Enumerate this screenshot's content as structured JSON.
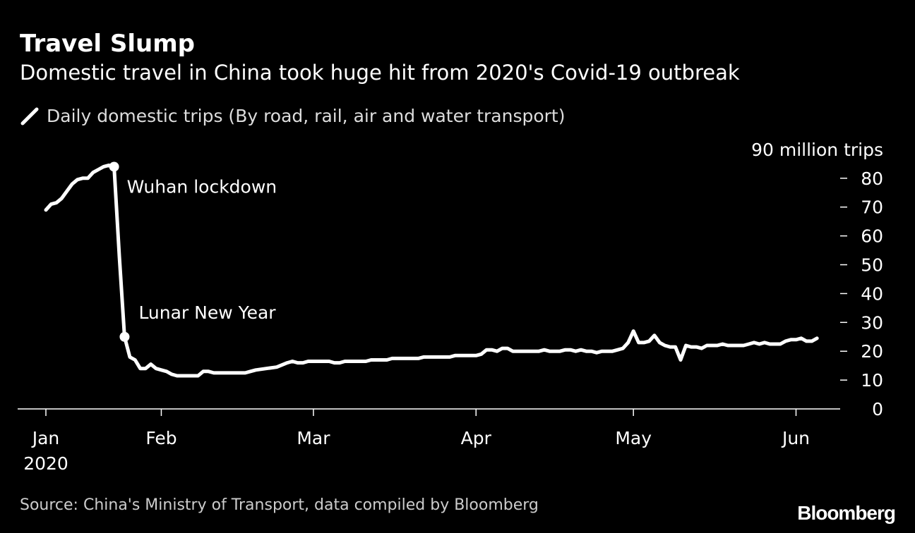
{
  "title": "Travel Slump",
  "subtitle": "Domestic travel in China took huge hit from 2020's Covid-19 outbreak",
  "legend_label": "Daily domestic trips (By road, rail, air and water transport)",
  "source": "Source: China's Ministry of Transport, data compiled by Bloomberg",
  "logo": "Bloomberg",
  "chart_data": {
    "type": "line",
    "title": "Travel Slump",
    "subtitle": "Domestic travel in China took huge hit from 2020's Covid-19 outbreak",
    "ylabel": "90 million trips",
    "ylim": [
      0,
      90
    ],
    "yticks": [
      0,
      10,
      20,
      30,
      40,
      50,
      60,
      70,
      80
    ],
    "ytick_labels": [
      "0",
      "10",
      "20",
      "30",
      "40",
      "50",
      "60",
      "70",
      "80"
    ],
    "y_axis_position": "right",
    "xlim": [
      "2020-01-10",
      "2020-06-05"
    ],
    "xticks": [
      {
        "date": "2020-01-10",
        "label": "Jan",
        "sublabel": "2020"
      },
      {
        "date": "2020-02-01",
        "label": "Feb"
      },
      {
        "date": "2020-03-01",
        "label": "Mar"
      },
      {
        "date": "2020-04-01",
        "label": "Apr"
      },
      {
        "date": "2020-05-01",
        "label": "May"
      },
      {
        "date": "2020-06-01",
        "label": "Jun"
      }
    ],
    "grid": false,
    "line_color": "#ffffff",
    "series": [
      {
        "name": "Daily domestic trips (By road, rail, air and water transport)",
        "points": [
          [
            "2020-01-10",
            69
          ],
          [
            "2020-01-11",
            71
          ],
          [
            "2020-01-12",
            71.5
          ],
          [
            "2020-01-13",
            73
          ],
          [
            "2020-01-14",
            75.5
          ],
          [
            "2020-01-15",
            78
          ],
          [
            "2020-01-16",
            79.5
          ],
          [
            "2020-01-17",
            80
          ],
          [
            "2020-01-18",
            80
          ],
          [
            "2020-01-19",
            82
          ],
          [
            "2020-01-20",
            83
          ],
          [
            "2020-01-21",
            84
          ],
          [
            "2020-01-22",
            84.5
          ],
          [
            "2020-01-23",
            84
          ],
          [
            "2020-01-24",
            53
          ],
          [
            "2020-01-25",
            25
          ],
          [
            "2020-01-26",
            18
          ],
          [
            "2020-01-27",
            17
          ],
          [
            "2020-01-28",
            14
          ],
          [
            "2020-01-29",
            14
          ],
          [
            "2020-01-30",
            15.5
          ],
          [
            "2020-01-31",
            14
          ],
          [
            "2020-02-01",
            13.5
          ],
          [
            "2020-02-02",
            13
          ],
          [
            "2020-02-03",
            12
          ],
          [
            "2020-02-04",
            11.5
          ],
          [
            "2020-02-08",
            11.5
          ],
          [
            "2020-02-09",
            13
          ],
          [
            "2020-02-10",
            13
          ],
          [
            "2020-02-11",
            12.5
          ],
          [
            "2020-02-17",
            12.5
          ],
          [
            "2020-02-18",
            13
          ],
          [
            "2020-02-19",
            13.5
          ],
          [
            "2020-02-21",
            14
          ],
          [
            "2020-02-23",
            14.5
          ],
          [
            "2020-02-25",
            16
          ],
          [
            "2020-02-26",
            16.5
          ],
          [
            "2020-02-27",
            16
          ],
          [
            "2020-02-28",
            16
          ],
          [
            "2020-02-29",
            16.5
          ],
          [
            "2020-03-04",
            16.5
          ],
          [
            "2020-03-05",
            16
          ],
          [
            "2020-03-06",
            16
          ],
          [
            "2020-03-07",
            16.5
          ],
          [
            "2020-03-11",
            16.5
          ],
          [
            "2020-03-12",
            17
          ],
          [
            "2020-03-15",
            17
          ],
          [
            "2020-03-16",
            17.5
          ],
          [
            "2020-03-21",
            17.5
          ],
          [
            "2020-03-22",
            18
          ],
          [
            "2020-03-27",
            18
          ],
          [
            "2020-03-28",
            18.5
          ],
          [
            "2020-04-01",
            18.5
          ],
          [
            "2020-04-02",
            19
          ],
          [
            "2020-04-03",
            20.5
          ],
          [
            "2020-04-04",
            20.5
          ],
          [
            "2020-04-05",
            20
          ],
          [
            "2020-04-06",
            21
          ],
          [
            "2020-04-07",
            21
          ],
          [
            "2020-04-08",
            20
          ],
          [
            "2020-04-13",
            20
          ],
          [
            "2020-04-14",
            20.5
          ],
          [
            "2020-04-15",
            20
          ],
          [
            "2020-04-17",
            20
          ],
          [
            "2020-04-18",
            20.5
          ],
          [
            "2020-04-19",
            20.5
          ],
          [
            "2020-04-20",
            20
          ],
          [
            "2020-04-21",
            20.5
          ],
          [
            "2020-04-22",
            20
          ],
          [
            "2020-04-23",
            20
          ],
          [
            "2020-04-24",
            19.5
          ],
          [
            "2020-04-25",
            20
          ],
          [
            "2020-04-27",
            20
          ],
          [
            "2020-04-28",
            20.5
          ],
          [
            "2020-04-29",
            21
          ],
          [
            "2020-04-30",
            23
          ],
          [
            "2020-05-01",
            27
          ],
          [
            "2020-05-02",
            23
          ],
          [
            "2020-05-03",
            23
          ],
          [
            "2020-05-04",
            23.5
          ],
          [
            "2020-05-05",
            25.5
          ],
          [
            "2020-05-06",
            23
          ],
          [
            "2020-05-07",
            22
          ],
          [
            "2020-05-08",
            21.5
          ],
          [
            "2020-05-09",
            21.5
          ],
          [
            "2020-05-10",
            17
          ],
          [
            "2020-05-11",
            22
          ],
          [
            "2020-05-12",
            21.5
          ],
          [
            "2020-05-13",
            21.5
          ],
          [
            "2020-05-14",
            21
          ],
          [
            "2020-05-15",
            22
          ],
          [
            "2020-05-17",
            22
          ],
          [
            "2020-05-18",
            22.5
          ],
          [
            "2020-05-19",
            22
          ],
          [
            "2020-05-22",
            22
          ],
          [
            "2020-05-23",
            22.5
          ],
          [
            "2020-05-24",
            23
          ],
          [
            "2020-05-25",
            22.5
          ],
          [
            "2020-05-26",
            23
          ],
          [
            "2020-05-27",
            22.5
          ],
          [
            "2020-05-29",
            22.5
          ],
          [
            "2020-05-30",
            23.5
          ],
          [
            "2020-05-31",
            24
          ],
          [
            "2020-06-01",
            24
          ],
          [
            "2020-06-02",
            24.5
          ],
          [
            "2020-06-03",
            23.5
          ],
          [
            "2020-06-04",
            23.5
          ],
          [
            "2020-06-05",
            24.5
          ]
        ]
      }
    ],
    "annotations": [
      {
        "date": "2020-01-23",
        "value": 84,
        "label": "Wuhan lockdown"
      },
      {
        "date": "2020-01-25",
        "value": 25,
        "label": "Lunar New Year"
      }
    ]
  }
}
